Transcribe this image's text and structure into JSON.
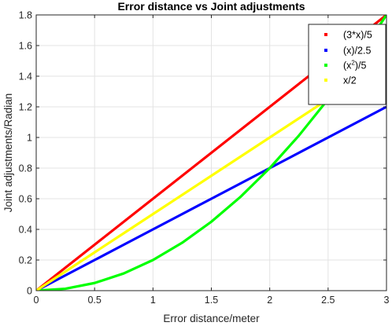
{
  "chart_data": {
    "type": "line",
    "title": "Error distance vs Joint adjustments",
    "xlabel": "Error distance/meter",
    "ylabel": "Joint adjustments/Radian",
    "xlim": [
      0,
      3
    ],
    "ylim": [
      0,
      1.8
    ],
    "x_ticks": [
      0,
      0.5,
      1,
      1.5,
      2,
      2.5,
      3
    ],
    "x_tick_labels": [
      "0",
      "0.5",
      "1",
      "1.5",
      "2",
      "2.5",
      "3"
    ],
    "y_ticks": [
      0,
      0.2,
      0.4,
      0.6,
      0.8,
      1,
      1.2,
      1.4,
      1.6,
      1.8
    ],
    "y_tick_labels": [
      "0",
      "0.2",
      "0.4",
      "0.6",
      "0.8",
      "1",
      "1.2",
      "1.4",
      "1.6",
      "1.8"
    ],
    "grid": true,
    "legend_position": "top-right",
    "x": [
      0,
      0.25,
      0.5,
      0.75,
      1,
      1.25,
      1.5,
      1.75,
      2,
      2.25,
      2.5,
      2.75,
      3
    ],
    "series": [
      {
        "name_base": "(3*x)/5",
        "color": "#ff0000",
        "values": [
          0,
          0.15,
          0.3,
          0.45,
          0.6,
          0.75,
          0.9,
          1.05,
          1.2,
          1.35,
          1.5,
          1.65,
          1.8
        ]
      },
      {
        "name_base": " (x)/2.5",
        "color": "#0000ff",
        "values": [
          0,
          0.1,
          0.2,
          0.3,
          0.4,
          0.5,
          0.6,
          0.7,
          0.8,
          0.9,
          1.0,
          1.1,
          1.2
        ]
      },
      {
        "name_base": "(x",
        "name_sup": "2",
        "name_tail": ")/5",
        "color": "#00ff00",
        "values": [
          0,
          0.0125,
          0.05,
          0.1125,
          0.2,
          0.3125,
          0.45,
          0.6125,
          0.8,
          1.0125,
          1.25,
          1.5125,
          1.8
        ]
      },
      {
        "name_base": "x/2",
        "color": "#ffff00",
        "values": [
          0,
          0.125,
          0.25,
          0.375,
          0.5,
          0.625,
          0.75,
          0.875,
          1.0,
          1.125,
          1.25,
          1.375,
          1.5
        ]
      }
    ]
  }
}
